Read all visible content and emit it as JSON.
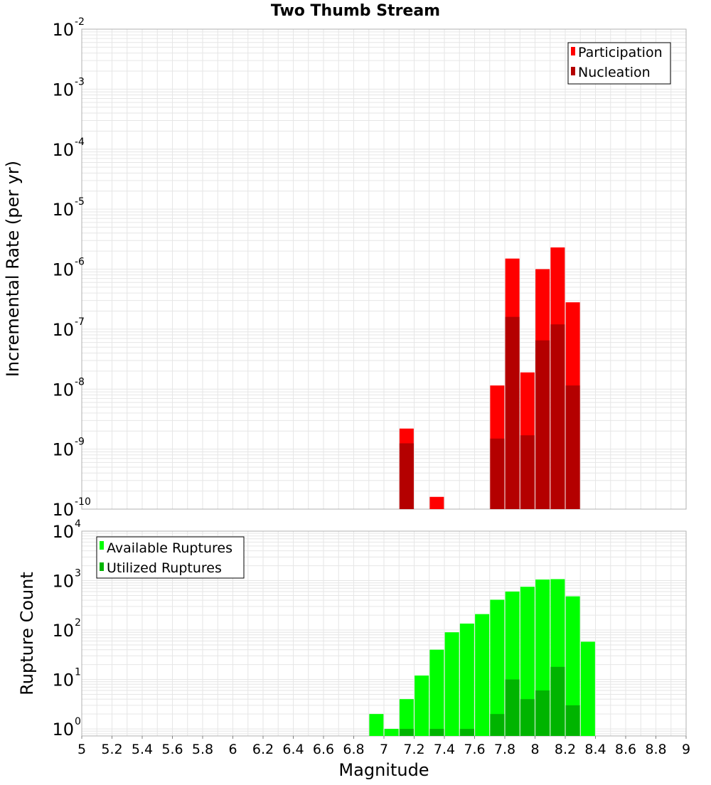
{
  "title": "Two Thumb Stream",
  "colors": {
    "participation": "#ff0000",
    "nucleation": "#b40000",
    "available": "#00ff00",
    "utilized": "#00b400",
    "grid": "#e6e6e6",
    "border": "#b0b0b0"
  },
  "chart_data": [
    {
      "type": "bar",
      "title": "Two Thumb Stream",
      "ylabel": "Incremental Rate (per yr)",
      "xlabel": "",
      "yscale": "log",
      "ylim": [
        1e-10,
        0.01
      ],
      "xlim": [
        5,
        9
      ],
      "ytick_labels": [
        {
          "base": "10",
          "exp": "-10",
          "value": 1e-10
        },
        {
          "base": "10",
          "exp": "-9",
          "value": 1e-09
        },
        {
          "base": "10",
          "exp": "-8",
          "value": 1e-08
        },
        {
          "base": "10",
          "exp": "-7",
          "value": 1e-07
        },
        {
          "base": "10",
          "exp": "-6",
          "value": 1e-06
        },
        {
          "base": "10",
          "exp": "-5",
          "value": 1e-05
        },
        {
          "base": "10",
          "exp": "-4",
          "value": 0.0001
        },
        {
          "base": "10",
          "exp": "-3",
          "value": 0.001
        },
        {
          "base": "10",
          "exp": "-2",
          "value": 0.01
        }
      ],
      "legend": {
        "position": "top-right",
        "entries": [
          "Participation",
          "Nucleation"
        ]
      },
      "series": [
        {
          "name": "Participation",
          "x": [
            7.15,
            7.35,
            7.75,
            7.85,
            7.95,
            8.05,
            8.15,
            8.25
          ],
          "values": [
            2.2e-09,
            1.6e-10,
            1.15e-08,
            1.5e-06,
            1.9e-08,
            1e-06,
            2.3e-06,
            2.8e-07
          ]
        },
        {
          "name": "Nucleation",
          "x": [
            7.15,
            7.75,
            7.85,
            7.95,
            8.05,
            8.15,
            8.25
          ],
          "values": [
            1.25e-09,
            1.5e-09,
            1.6e-07,
            1.7e-09,
            6.5e-08,
            1.2e-07,
            1.15e-08
          ]
        }
      ]
    },
    {
      "type": "bar",
      "ylabel": "Rupture Count",
      "xlabel": "Magnitude",
      "yscale": "log",
      "ylim": [
        0.72,
        10000
      ],
      "xlim": [
        5,
        9
      ],
      "ytick_labels": [
        {
          "base": "10",
          "exp": "0",
          "value": 1
        },
        {
          "base": "10",
          "exp": "1",
          "value": 10
        },
        {
          "base": "10",
          "exp": "2",
          "value": 100
        },
        {
          "base": "10",
          "exp": "3",
          "value": 1000
        },
        {
          "base": "10",
          "exp": "4",
          "value": 10000
        }
      ],
      "xtick_labels": [
        "5",
        "5.2",
        "5.4",
        "5.6",
        "5.8",
        "6",
        "6.2",
        "6.4",
        "6.6",
        "6.8",
        "7",
        "7.2",
        "7.4",
        "7.6",
        "7.8",
        "8",
        "8.2",
        "8.4",
        "8.6",
        "8.8",
        "9"
      ],
      "legend": {
        "position": "top-left",
        "entries": [
          "Available Ruptures",
          "Utilized Ruptures"
        ]
      },
      "series": [
        {
          "name": "Available Ruptures",
          "x": [
            6.95,
            7.05,
            7.15,
            7.25,
            7.35,
            7.45,
            7.55,
            7.65,
            7.75,
            7.85,
            7.95,
            8.05,
            8.15,
            8.25,
            8.35
          ],
          "values": [
            2,
            1,
            4,
            12,
            40,
            90,
            135,
            210,
            410,
            600,
            750,
            1050,
            1070,
            480,
            58
          ]
        },
        {
          "name": "Utilized Ruptures",
          "x": [
            7.15,
            7.35,
            7.55,
            7.75,
            7.85,
            7.95,
            8.05,
            8.15,
            8.25
          ],
          "values": [
            1,
            1,
            1,
            2,
            10,
            4,
            6,
            18,
            3
          ]
        }
      ]
    }
  ]
}
